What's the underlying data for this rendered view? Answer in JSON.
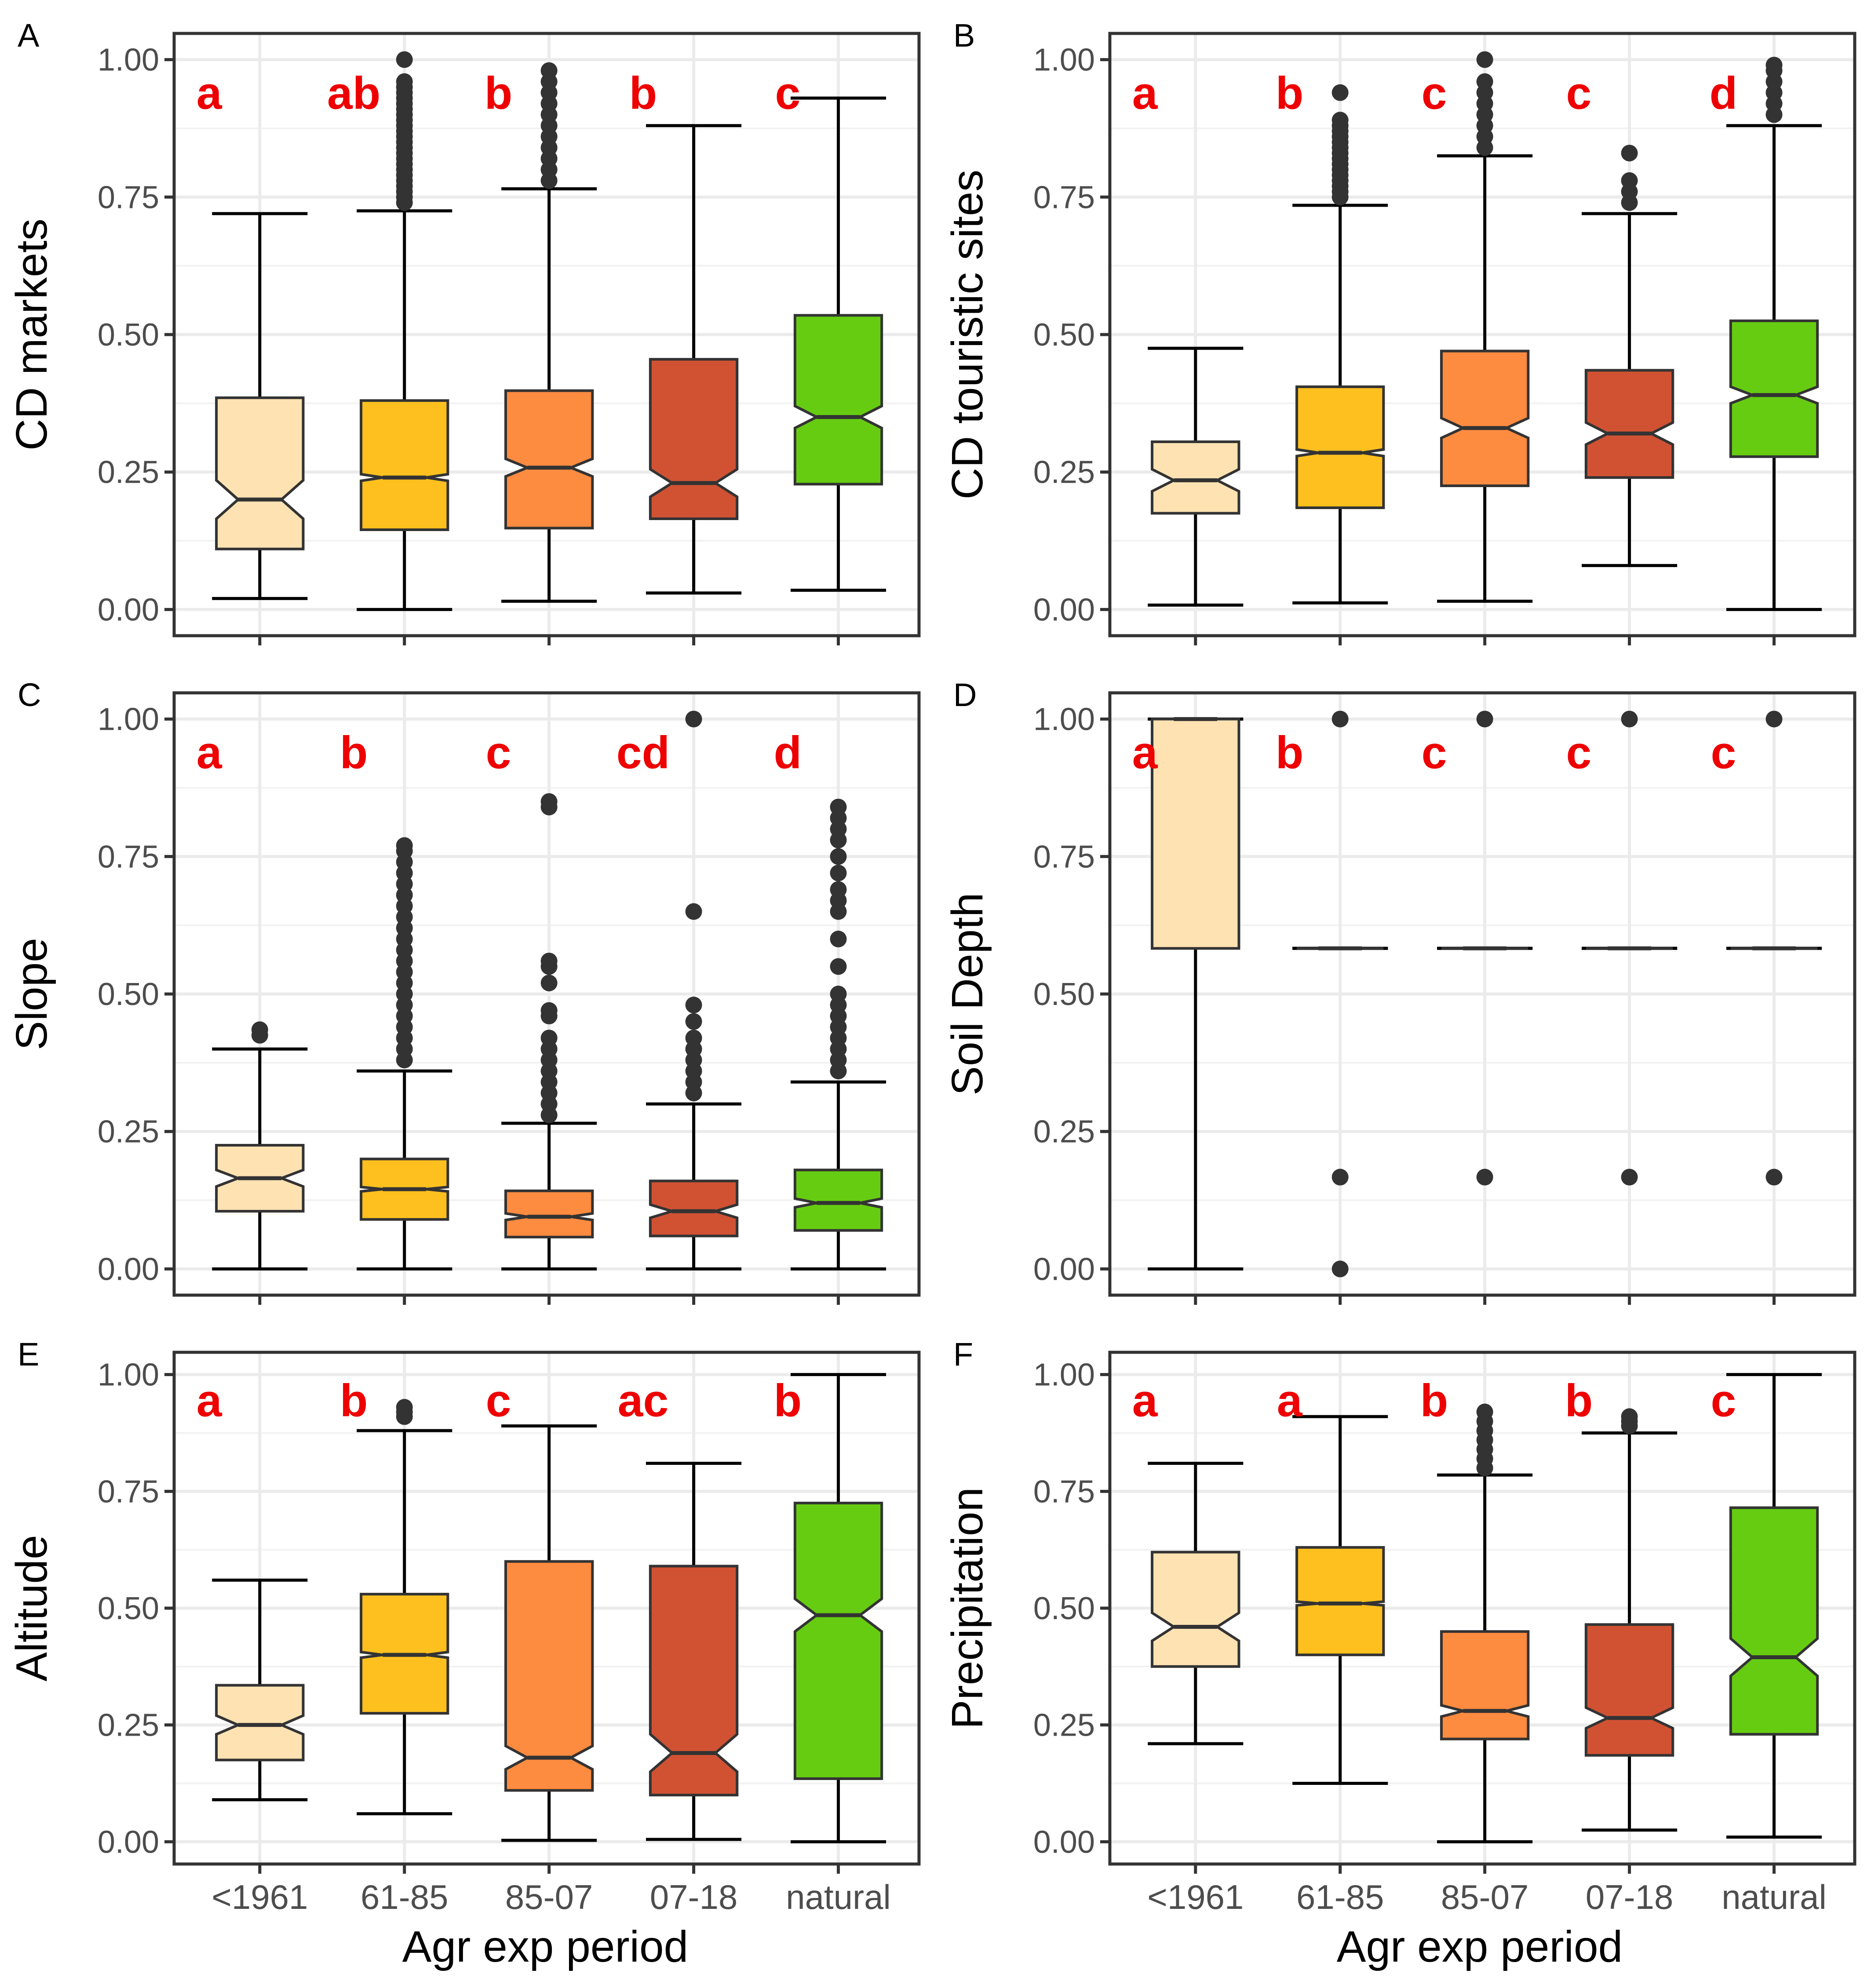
{
  "figure": {
    "xlabel": "Agr exp period"
  },
  "chart_data": [
    {
      "tag": "A",
      "type": "boxplot",
      "ylabel": "CD markets",
      "categories": [
        "<1961",
        "61-85",
        "85-07",
        "07-18",
        "natural"
      ],
      "colors": [
        "#FFE2B2",
        "#FDC01F",
        "#FD8B40",
        "#D05233",
        "#66CC11"
      ],
      "yticks": [
        "0.00",
        "0.25",
        "0.50",
        "0.75",
        "1.00"
      ],
      "ylim": [
        0,
        1
      ],
      "letters": [
        "a",
        "ab",
        "b",
        "b",
        "c"
      ],
      "boxes": [
        {
          "q1": 0.11,
          "median": 0.2,
          "q3": 0.385,
          "whisker_low": 0.02,
          "whisker_high": 0.72,
          "notch": 0.035,
          "outliers": []
        },
        {
          "q1": 0.145,
          "median": 0.24,
          "q3": 0.38,
          "whisker_low": 0.0,
          "whisker_high": 0.725,
          "notch": 0.006,
          "outliers": [
            0.74,
            0.75,
            0.76,
            0.77,
            0.78,
            0.79,
            0.8,
            0.81,
            0.82,
            0.83,
            0.84,
            0.85,
            0.86,
            0.87,
            0.88,
            0.89,
            0.9,
            0.91,
            0.92,
            0.93,
            0.94,
            0.95,
            0.96,
            1.0
          ]
        },
        {
          "q1": 0.148,
          "median": 0.258,
          "q3": 0.398,
          "whisker_low": 0.015,
          "whisker_high": 0.765,
          "notch": 0.016,
          "outliers": [
            0.78,
            0.8,
            0.82,
            0.84,
            0.86,
            0.88,
            0.9,
            0.92,
            0.94,
            0.96,
            0.98
          ]
        },
        {
          "q1": 0.165,
          "median": 0.23,
          "q3": 0.455,
          "whisker_low": 0.03,
          "whisker_high": 0.88,
          "notch": 0.025,
          "outliers": []
        },
        {
          "q1": 0.228,
          "median": 0.35,
          "q3": 0.535,
          "whisker_low": 0.035,
          "whisker_high": 0.93,
          "notch": 0.02,
          "outliers": []
        }
      ]
    },
    {
      "tag": "B",
      "type": "boxplot",
      "ylabel": "CD touristic sites",
      "categories": [
        "<1961",
        "61-85",
        "85-07",
        "07-18",
        "natural"
      ],
      "colors": [
        "#FFE2B2",
        "#FDC01F",
        "#FD8B40",
        "#D05233",
        "#66CC11"
      ],
      "yticks": [
        "0.00",
        "0.25",
        "0.50",
        "0.75",
        "1.00"
      ],
      "ylim": [
        0,
        1
      ],
      "letters": [
        "a",
        "b",
        "c",
        "c",
        "d"
      ],
      "boxes": [
        {
          "q1": 0.175,
          "median": 0.235,
          "q3": 0.305,
          "whisker_low": 0.008,
          "whisker_high": 0.475,
          "notch": 0.02,
          "outliers": []
        },
        {
          "q1": 0.185,
          "median": 0.285,
          "q3": 0.405,
          "whisker_low": 0.012,
          "whisker_high": 0.735,
          "notch": 0.006,
          "outliers": [
            0.75,
            0.76,
            0.77,
            0.78,
            0.79,
            0.8,
            0.81,
            0.82,
            0.83,
            0.84,
            0.85,
            0.86,
            0.87,
            0.88,
            0.89,
            0.94
          ]
        },
        {
          "q1": 0.225,
          "median": 0.33,
          "q3": 0.47,
          "whisker_low": 0.015,
          "whisker_high": 0.825,
          "notch": 0.018,
          "outliers": [
            0.84,
            0.86,
            0.88,
            0.9,
            0.92,
            0.94,
            0.96,
            1.0
          ]
        },
        {
          "q1": 0.24,
          "median": 0.32,
          "q3": 0.435,
          "whisker_low": 0.08,
          "whisker_high": 0.72,
          "notch": 0.02,
          "outliers": [
            0.74,
            0.76,
            0.78,
            0.83
          ]
        },
        {
          "q1": 0.278,
          "median": 0.39,
          "q3": 0.525,
          "whisker_low": 0.0,
          "whisker_high": 0.88,
          "notch": 0.015,
          "outliers": [
            0.9,
            0.92,
            0.94,
            0.96,
            0.98,
            0.99
          ]
        }
      ]
    },
    {
      "tag": "C",
      "type": "boxplot",
      "ylabel": "Slope",
      "categories": [
        "<1961",
        "61-85",
        "85-07",
        "07-18",
        "natural"
      ],
      "colors": [
        "#FFE2B2",
        "#FDC01F",
        "#FD8B40",
        "#D05233",
        "#66CC11"
      ],
      "yticks": [
        "0.00",
        "0.25",
        "0.50",
        "0.75",
        "1.00"
      ],
      "ylim": [
        0,
        1
      ],
      "letters": [
        "a",
        "b",
        "c",
        "cd",
        "d"
      ],
      "boxes": [
        {
          "q1": 0.105,
          "median": 0.165,
          "q3": 0.225,
          "whisker_low": 0.0,
          "whisker_high": 0.4,
          "notch": 0.015,
          "outliers": [
            0.425,
            0.435
          ]
        },
        {
          "q1": 0.09,
          "median": 0.145,
          "q3": 0.2,
          "whisker_low": 0.0,
          "whisker_high": 0.36,
          "notch": 0.004,
          "outliers": [
            0.38,
            0.4,
            0.42,
            0.44,
            0.46,
            0.48,
            0.5,
            0.52,
            0.54,
            0.56,
            0.58,
            0.6,
            0.62,
            0.64,
            0.66,
            0.68,
            0.7,
            0.72,
            0.74,
            0.76,
            0.77
          ]
        },
        {
          "q1": 0.058,
          "median": 0.095,
          "q3": 0.142,
          "whisker_low": 0.0,
          "whisker_high": 0.265,
          "notch": 0.006,
          "outliers": [
            0.28,
            0.3,
            0.32,
            0.34,
            0.36,
            0.38,
            0.4,
            0.42,
            0.46,
            0.47,
            0.52,
            0.55,
            0.56,
            0.84,
            0.85
          ]
        },
        {
          "q1": 0.06,
          "median": 0.105,
          "q3": 0.16,
          "whisker_low": 0.0,
          "whisker_high": 0.3,
          "notch": 0.012,
          "outliers": [
            0.32,
            0.34,
            0.36,
            0.38,
            0.4,
            0.42,
            0.45,
            0.48,
            0.65,
            1.0
          ]
        },
        {
          "q1": 0.07,
          "median": 0.12,
          "q3": 0.18,
          "whisker_low": 0.0,
          "whisker_high": 0.34,
          "notch": 0.008,
          "outliers": [
            0.36,
            0.38,
            0.4,
            0.42,
            0.44,
            0.46,
            0.48,
            0.5,
            0.55,
            0.6,
            0.65,
            0.67,
            0.69,
            0.72,
            0.75,
            0.78,
            0.8,
            0.82,
            0.84
          ]
        }
      ]
    },
    {
      "tag": "D",
      "type": "boxplot",
      "ylabel": "Soil Depth",
      "categories": [
        "<1961",
        "61-85",
        "85-07",
        "07-18",
        "natural"
      ],
      "colors": [
        "#FFE2B2",
        "#FDC01F",
        "#FD8B40",
        "#D05233",
        "#66CC11"
      ],
      "yticks": [
        "0.00",
        "0.25",
        "0.50",
        "0.75",
        "1.00"
      ],
      "ylim": [
        0,
        1
      ],
      "letters": [
        "a",
        "b",
        "c",
        "c",
        "c"
      ],
      "boxes": [
        {
          "q1": 0.583,
          "median": 1.0,
          "q3": 1.0,
          "whisker_low": 0.0,
          "whisker_high": 1.0,
          "notch": 0.0,
          "outliers": []
        },
        {
          "q1": 0.583,
          "median": 0.583,
          "q3": 0.583,
          "whisker_low": 0.583,
          "whisker_high": 0.583,
          "notch": 0.0,
          "outliers": [
            0.0,
            0.167,
            1.0
          ]
        },
        {
          "q1": 0.583,
          "median": 0.583,
          "q3": 0.583,
          "whisker_low": 0.583,
          "whisker_high": 0.583,
          "notch": 0.0,
          "outliers": [
            0.167,
            1.0
          ]
        },
        {
          "q1": 0.583,
          "median": 0.583,
          "q3": 0.583,
          "whisker_low": 0.583,
          "whisker_high": 0.583,
          "notch": 0.0,
          "outliers": [
            0.167,
            1.0
          ]
        },
        {
          "q1": 0.583,
          "median": 0.583,
          "q3": 0.583,
          "whisker_low": 0.583,
          "whisker_high": 0.583,
          "notch": 0.0,
          "outliers": [
            0.167,
            1.0
          ]
        }
      ]
    },
    {
      "tag": "E",
      "type": "boxplot",
      "ylabel": "Altitude",
      "categories": [
        "<1961",
        "61-85",
        "85-07",
        "07-18",
        "natural"
      ],
      "colors": [
        "#FFE2B2",
        "#FDC01F",
        "#FD8B40",
        "#D05233",
        "#66CC11"
      ],
      "yticks": [
        "0.00",
        "0.25",
        "0.50",
        "0.75",
        "1.00"
      ],
      "ylim": [
        0,
        1
      ],
      "letters": [
        "a",
        "b",
        "c",
        "ac",
        "b"
      ],
      "boxes": [
        {
          "q1": 0.175,
          "median": 0.25,
          "q3": 0.335,
          "whisker_low": 0.09,
          "whisker_high": 0.56,
          "notch": 0.02,
          "outliers": []
        },
        {
          "q1": 0.275,
          "median": 0.4,
          "q3": 0.53,
          "whisker_low": 0.06,
          "whisker_high": 0.88,
          "notch": 0.006,
          "outliers": [
            0.91,
            0.92,
            0.93
          ]
        },
        {
          "q1": 0.11,
          "median": 0.18,
          "q3": 0.6,
          "whisker_low": 0.003,
          "whisker_high": 0.89,
          "notch": 0.025,
          "outliers": []
        },
        {
          "q1": 0.1,
          "median": 0.19,
          "q3": 0.59,
          "whisker_low": 0.005,
          "whisker_high": 0.81,
          "notch": 0.04,
          "outliers": []
        },
        {
          "q1": 0.135,
          "median": 0.485,
          "q3": 0.725,
          "whisker_low": 0.0,
          "whisker_high": 1.0,
          "notch": 0.035,
          "outliers": []
        }
      ]
    },
    {
      "tag": "F",
      "type": "boxplot",
      "ylabel": "Precipitation",
      "categories": [
        "<1961",
        "61-85",
        "85-07",
        "07-18",
        "natural"
      ],
      "colors": [
        "#FFE2B2",
        "#FDC01F",
        "#FD8B40",
        "#D05233",
        "#66CC11"
      ],
      "yticks": [
        "0.00",
        "0.25",
        "0.50",
        "0.75",
        "1.00"
      ],
      "ylim": [
        0,
        1
      ],
      "letters": [
        "a",
        "a",
        "b",
        "b",
        "c"
      ],
      "boxes": [
        {
          "q1": 0.375,
          "median": 0.46,
          "q3": 0.62,
          "whisker_low": 0.21,
          "whisker_high": 0.81,
          "notch": 0.03,
          "outliers": []
        },
        {
          "q1": 0.4,
          "median": 0.51,
          "q3": 0.63,
          "whisker_low": 0.125,
          "whisker_high": 0.91,
          "notch": 0.004,
          "outliers": []
        },
        {
          "q1": 0.22,
          "median": 0.28,
          "q3": 0.45,
          "whisker_low": 0.0,
          "whisker_high": 0.785,
          "notch": 0.012,
          "outliers": [
            0.8,
            0.82,
            0.84,
            0.86,
            0.88,
            0.9,
            0.92
          ]
        },
        {
          "q1": 0.185,
          "median": 0.265,
          "q3": 0.465,
          "whisker_low": 0.025,
          "whisker_high": 0.875,
          "notch": 0.022,
          "outliers": [
            0.89,
            0.9,
            0.91
          ]
        },
        {
          "q1": 0.23,
          "median": 0.395,
          "q3": 0.715,
          "whisker_low": 0.01,
          "whisker_high": 1.0,
          "notch": 0.04,
          "outliers": []
        }
      ]
    }
  ]
}
